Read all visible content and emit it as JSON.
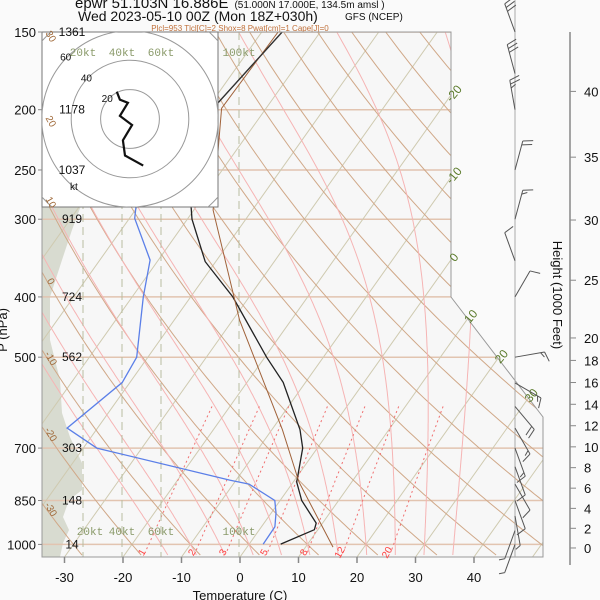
{
  "header": {
    "title_line1": "epwr 51.103N 16.886E",
    "title_line1_small": "(51.000N 17.000E, 134.5m amsl )",
    "title_line2": "Wed 2023-05-10 00Z (Mon 18Z+030h)",
    "model": "GFS (NCEP)",
    "indices": "Plcl=953 Tlcl[C]=2 Shox=8 Pwat[cm]=1 Cape[J]=0"
  },
  "chart_data": {
    "type": "line",
    "subtype": "skew-T log-P",
    "xlabel": "Temperature (C)",
    "ylabel": "P (hPa)",
    "y2label": "Height (1000 Feet)",
    "x_ticks": [
      "-30",
      "-20",
      "-10",
      "0",
      "10",
      "20",
      "30",
      "40"
    ],
    "x_tick_values": [
      -30,
      -20,
      -10,
      0,
      10,
      20,
      30,
      40
    ],
    "pressure_ticks": [
      "150",
      "200",
      "250",
      "300",
      "400",
      "500",
      "700",
      "850",
      "1000"
    ],
    "pressure_tick_values": [
      150,
      200,
      250,
      300,
      400,
      500,
      700,
      850,
      1000
    ],
    "height_labels_dam": [
      "1361",
      "1178",
      "1037",
      "919",
      "724",
      "562",
      "303",
      "148",
      "14"
    ],
    "height_ticks_kft": [
      "0",
      "2",
      "4",
      "6",
      "8",
      "10",
      "12",
      "14",
      "16",
      "18",
      "20",
      "25",
      "30",
      "35",
      "40"
    ],
    "height_tick_values": [
      0,
      2,
      4,
      6,
      8,
      10,
      12,
      14,
      16,
      18,
      20,
      25,
      30,
      35,
      40
    ],
    "isotherm_labels": [
      "-20",
      "-10",
      "0",
      "10",
      "20",
      "30"
    ],
    "isotherm_label_values": [
      -20,
      -10,
      0,
      10,
      20,
      30
    ],
    "dry_adiabat_labels": [
      "30",
      "20",
      "10",
      "0",
      "-10",
      "-20",
      "-30"
    ],
    "dry_adiabat_label_values": [
      30,
      20,
      10,
      0,
      -10,
      -20,
      -30
    ],
    "mixing_ratio_labels": [
      "1",
      "2",
      "3",
      "5",
      "8",
      "12",
      "20"
    ],
    "mixing_ratio_values": [
      1,
      2,
      3,
      5,
      8,
      12,
      20
    ],
    "wind_speed_labels": [
      "20kt",
      "40kt",
      "60kt",
      "100kt"
    ],
    "wind_speed_values": [
      20,
      40,
      60,
      100
    ],
    "series": [
      {
        "name": "temperature",
        "color": "#222222",
        "p": [
          150,
          200,
          250,
          300,
          351,
          400,
          500,
          549,
          654,
          700,
          794,
          850,
          924,
          947,
          999
        ],
        "t": [
          -56.5,
          -59.1,
          -55.8,
          -49.2,
          -41.8,
          -32.8,
          -19.7,
          -13.8,
          -5.2,
          -2.5,
          0.6,
          3.7,
          8.9,
          9.4,
          5.4
        ]
      },
      {
        "name": "dewpoint",
        "color": "#5b7fe8",
        "p": [
          150,
          200,
          247,
          299,
          349,
          400,
          500,
          549,
          650,
          700,
          788,
          800,
          850,
          890,
          937,
          999
        ],
        "t": [
          -83.0,
          -70.8,
          -64.4,
          -59.1,
          -51.4,
          -48.1,
          -41.9,
          -41.3,
          -45.2,
          -37.7,
          -11.1,
          -7.3,
          -0.9,
          0.8,
          2.3,
          2.4
        ]
      },
      {
        "name": "parcel",
        "color": "#a0623a",
        "p": [
          150,
          199,
          290,
          436,
          654,
          794,
          1010
        ],
        "t": [
          -57.2,
          -57.6,
          -46.7,
          -28.8,
          -8.2,
          1.0,
          14.7
        ]
      }
    ],
    "hodograph": {
      "unit": "kt",
      "rings": [
        20,
        40,
        60
      ],
      "ring_labels": [
        "20",
        "40",
        "60"
      ],
      "unit_label": "kt",
      "u": [
        -9,
        -6.9,
        -1.4,
        -6.9,
        1.4,
        -4.8,
        -3.4,
        9
      ],
      "v": [
        18.6,
        13.1,
        11,
        2.1,
        -4.1,
        -14.5,
        -24.8,
        -31.7
      ]
    },
    "winds": [
      {
        "p": 150,
        "dir": 340,
        "spd": 30
      },
      {
        "p": 175,
        "dir": 345,
        "spd": 30
      },
      {
        "p": 200,
        "dir": 350,
        "spd": 25
      },
      {
        "p": 250,
        "dir": 15,
        "spd": 20
      },
      {
        "p": 300,
        "dir": 15,
        "spd": 15
      },
      {
        "p": 350,
        "dir": 340,
        "spd": 10
      },
      {
        "p": 400,
        "dir": 30,
        "spd": 10
      },
      {
        "p": 500,
        "dir": 80,
        "spd": 15
      },
      {
        "p": 550,
        "dir": 120,
        "spd": 15
      },
      {
        "p": 600,
        "dir": 140,
        "spd": 20
      },
      {
        "p": 650,
        "dir": 150,
        "spd": 15
      },
      {
        "p": 700,
        "dir": 160,
        "spd": 15
      },
      {
        "p": 750,
        "dir": 160,
        "spd": 10
      },
      {
        "p": 800,
        "dir": 150,
        "spd": 10
      },
      {
        "p": 850,
        "dir": 160,
        "spd": 10
      },
      {
        "p": 900,
        "dir": 170,
        "spd": 5
      },
      {
        "p": 950,
        "dir": 200,
        "spd": 5
      },
      {
        "p": 1000,
        "dir": 200,
        "spd": 5
      }
    ]
  }
}
